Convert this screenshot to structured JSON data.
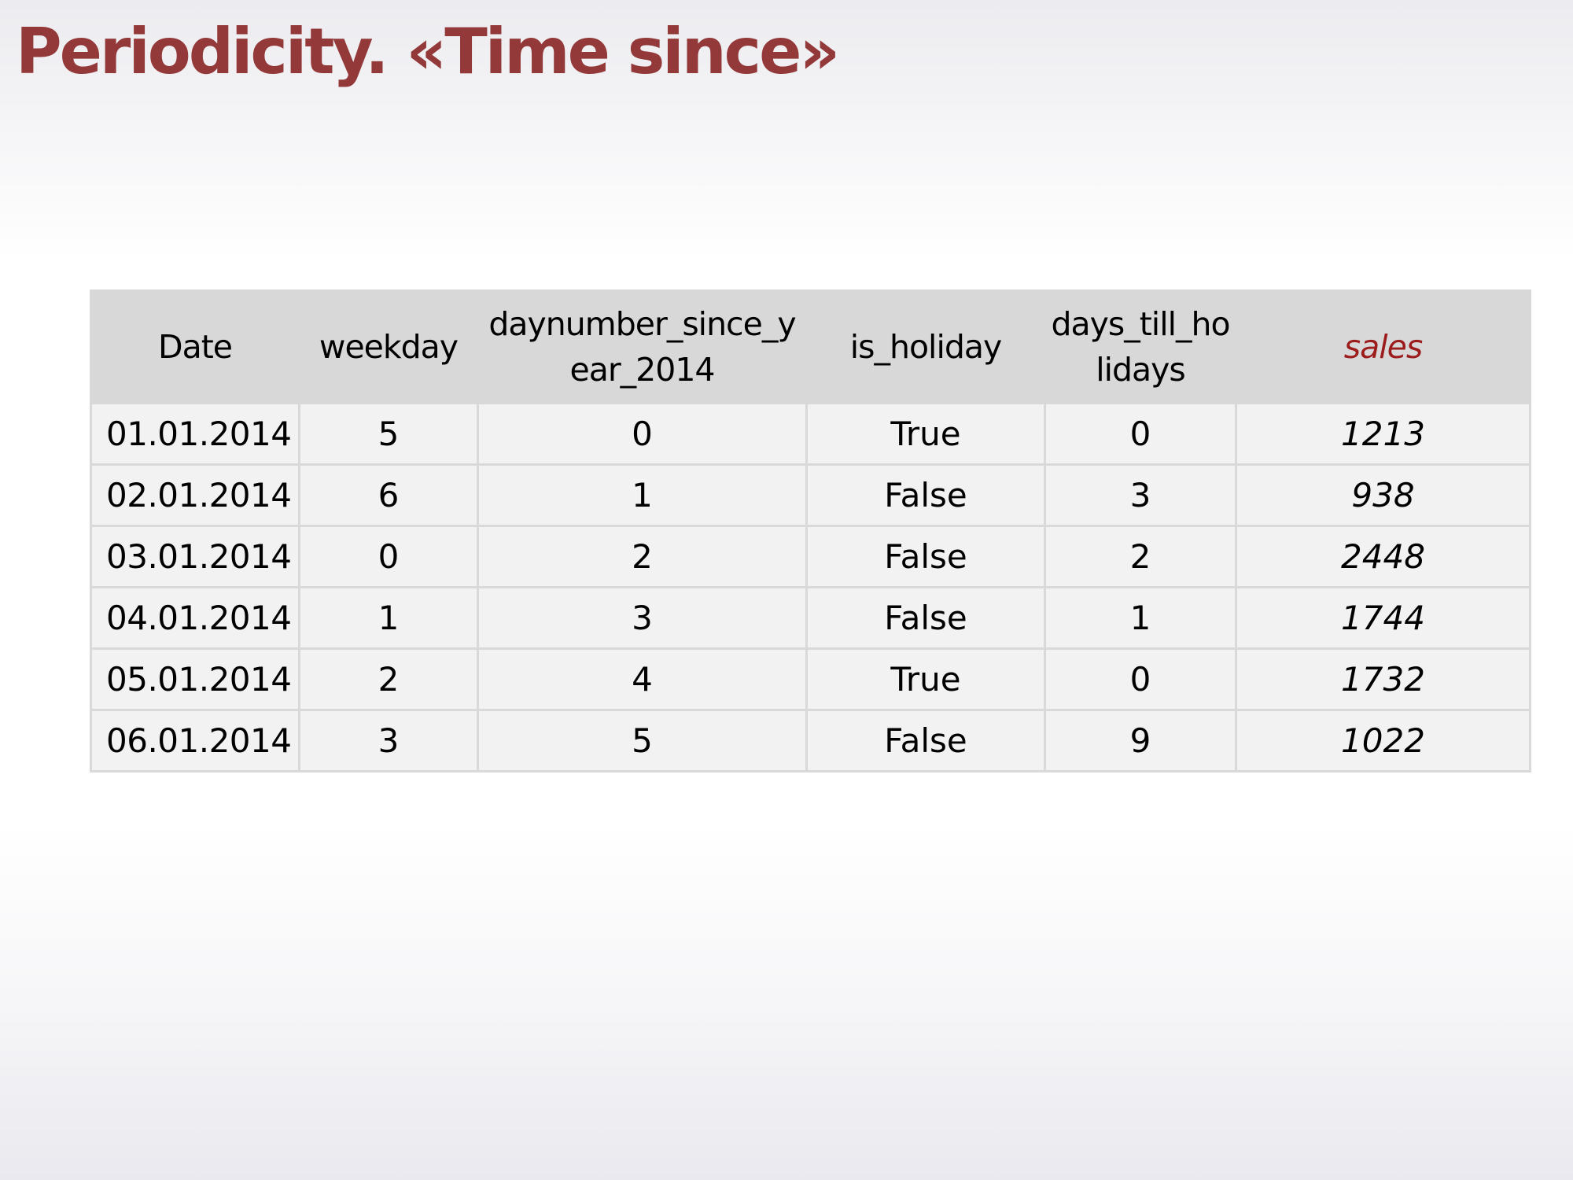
{
  "slide": {
    "title": "Periodicity. «Time since»"
  },
  "table": {
    "headers": {
      "date": "Date",
      "weekday": "weekday",
      "daynumber": "daynumber_since_year_2014",
      "is_holiday": "is_holiday",
      "days_till": "days_till_holidays",
      "sales": "sales"
    },
    "rows": [
      {
        "date": "01.01.2014",
        "weekday": "5",
        "daynumber": "0",
        "is_holiday": "True",
        "days_till": "0",
        "sales": "1213"
      },
      {
        "date": "02.01.2014",
        "weekday": "6",
        "daynumber": "1",
        "is_holiday": "False",
        "days_till": "3",
        "sales": "938"
      },
      {
        "date": "03.01.2014",
        "weekday": "0",
        "daynumber": "2",
        "is_holiday": "False",
        "days_till": "2",
        "sales": "2448"
      },
      {
        "date": "04.01.2014",
        "weekday": "1",
        "daynumber": "3",
        "is_holiday": "False",
        "days_till": "1",
        "sales": "1744"
      },
      {
        "date": "05.01.2014",
        "weekday": "2",
        "daynumber": "4",
        "is_holiday": "True",
        "days_till": "0",
        "sales": "1732"
      },
      {
        "date": "06.01.2014",
        "weekday": "3",
        "daynumber": "5",
        "is_holiday": "False",
        "days_till": "9",
        "sales": "1022"
      }
    ]
  },
  "colors": {
    "title": "#933939",
    "sales_header": "#9c1c1c",
    "header_background": "#d8d8d8",
    "cell_background": "#f2f2f2",
    "cell_border": "#d9d9d9"
  }
}
